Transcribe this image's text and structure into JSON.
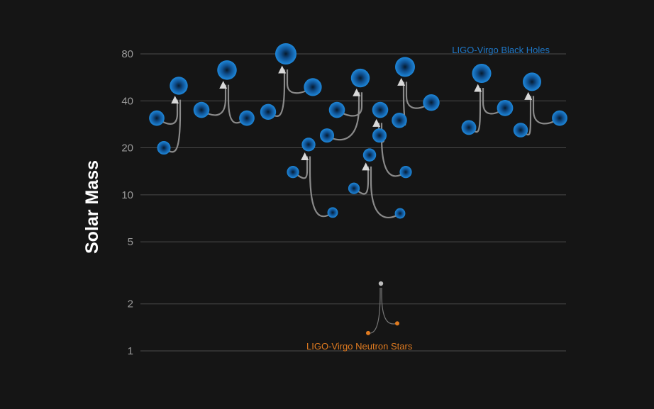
{
  "chart_data": {
    "type": "scatter",
    "ylabel": "Solar Mass",
    "yscale": "log",
    "ylim": [
      1,
      80
    ],
    "yticks": [
      1,
      2,
      5,
      10,
      20,
      40,
      80
    ],
    "grid": true,
    "annotations": [
      {
        "text": "LIGO-Virgo Black Holes",
        "color": "#1f78c8"
      },
      {
        "text": "LIGO-Virgo Neutron Stars",
        "color": "#e07b20"
      }
    ],
    "series": [
      {
        "name": "LIGO-Virgo Black Holes",
        "color": "#1f78c8",
        "mergers": [
          {
            "m1": 31,
            "m2": 20,
            "final": 50
          },
          {
            "m1": 35,
            "m2": 31,
            "final": 63
          },
          {
            "m1": 34,
            "m2": 49,
            "final": 80
          },
          {
            "m1": 14,
            "m2": 7.7,
            "final": 21
          },
          {
            "m1": 24,
            "m2": 35,
            "final": 56
          },
          {
            "m1": 11,
            "m2": 7.6,
            "final": 18
          },
          {
            "m1": 24,
            "m2": 14,
            "final": 35
          },
          {
            "m1": 30,
            "m2": 39,
            "final": 66
          },
          {
            "m1": 27,
            "m2": 36,
            "final": 60
          },
          {
            "m1": 26,
            "m2": 31,
            "final": 53
          }
        ]
      },
      {
        "name": "LIGO-Virgo Neutron Stars",
        "color": "#e07b20",
        "remnant_color": "#bdbdbd",
        "mergers": [
          {
            "m1": 1.3,
            "m2": 1.5,
            "final": 2.7
          }
        ]
      }
    ]
  }
}
